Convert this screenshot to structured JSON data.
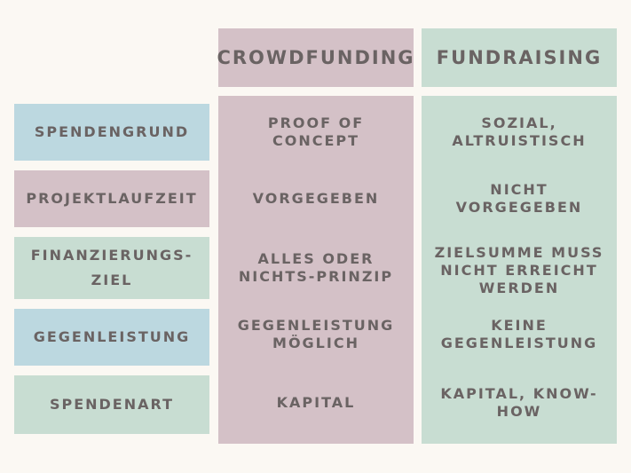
{
  "headers": {
    "col1": "CROWDFUNDING",
    "col2": "FUNDRAISING"
  },
  "rows": [
    {
      "label": "SPENDENGRUND",
      "crowdfunding": "PROOF OF\nCONCEPT",
      "fundraising": "SOZIAL,\nALTRUISTISCH"
    },
    {
      "label": "PROJEKTLAUFZEIT",
      "crowdfunding": "VORGEGEBEN",
      "fundraising": "NICHT\nVORGEGEBEN"
    },
    {
      "label": "FINANZIERUNGS-\nZIEL",
      "crowdfunding": "ALLES ODER\nNICHTS-PRINZIP",
      "fundraising": "ZIELSUMME MUSS\nNICHT ERREICHT\nWERDEN"
    },
    {
      "label": "GEGENLEISTUNG",
      "crowdfunding": "GEGENLEISTUNG\nMÖGLICH",
      "fundraising": "KEINE\nGEGENLEISTUNG"
    },
    {
      "label": "SPENDENART",
      "crowdfunding": "KAPITAL",
      "fundraising": "KAPITAL, KNOW-\nHOW"
    }
  ],
  "colors": {
    "pink": "#d4c1c7",
    "green": "#c8ddd2",
    "blue": "#bcd8e0",
    "text": "#6a6363",
    "background": "#fbf8f3"
  }
}
